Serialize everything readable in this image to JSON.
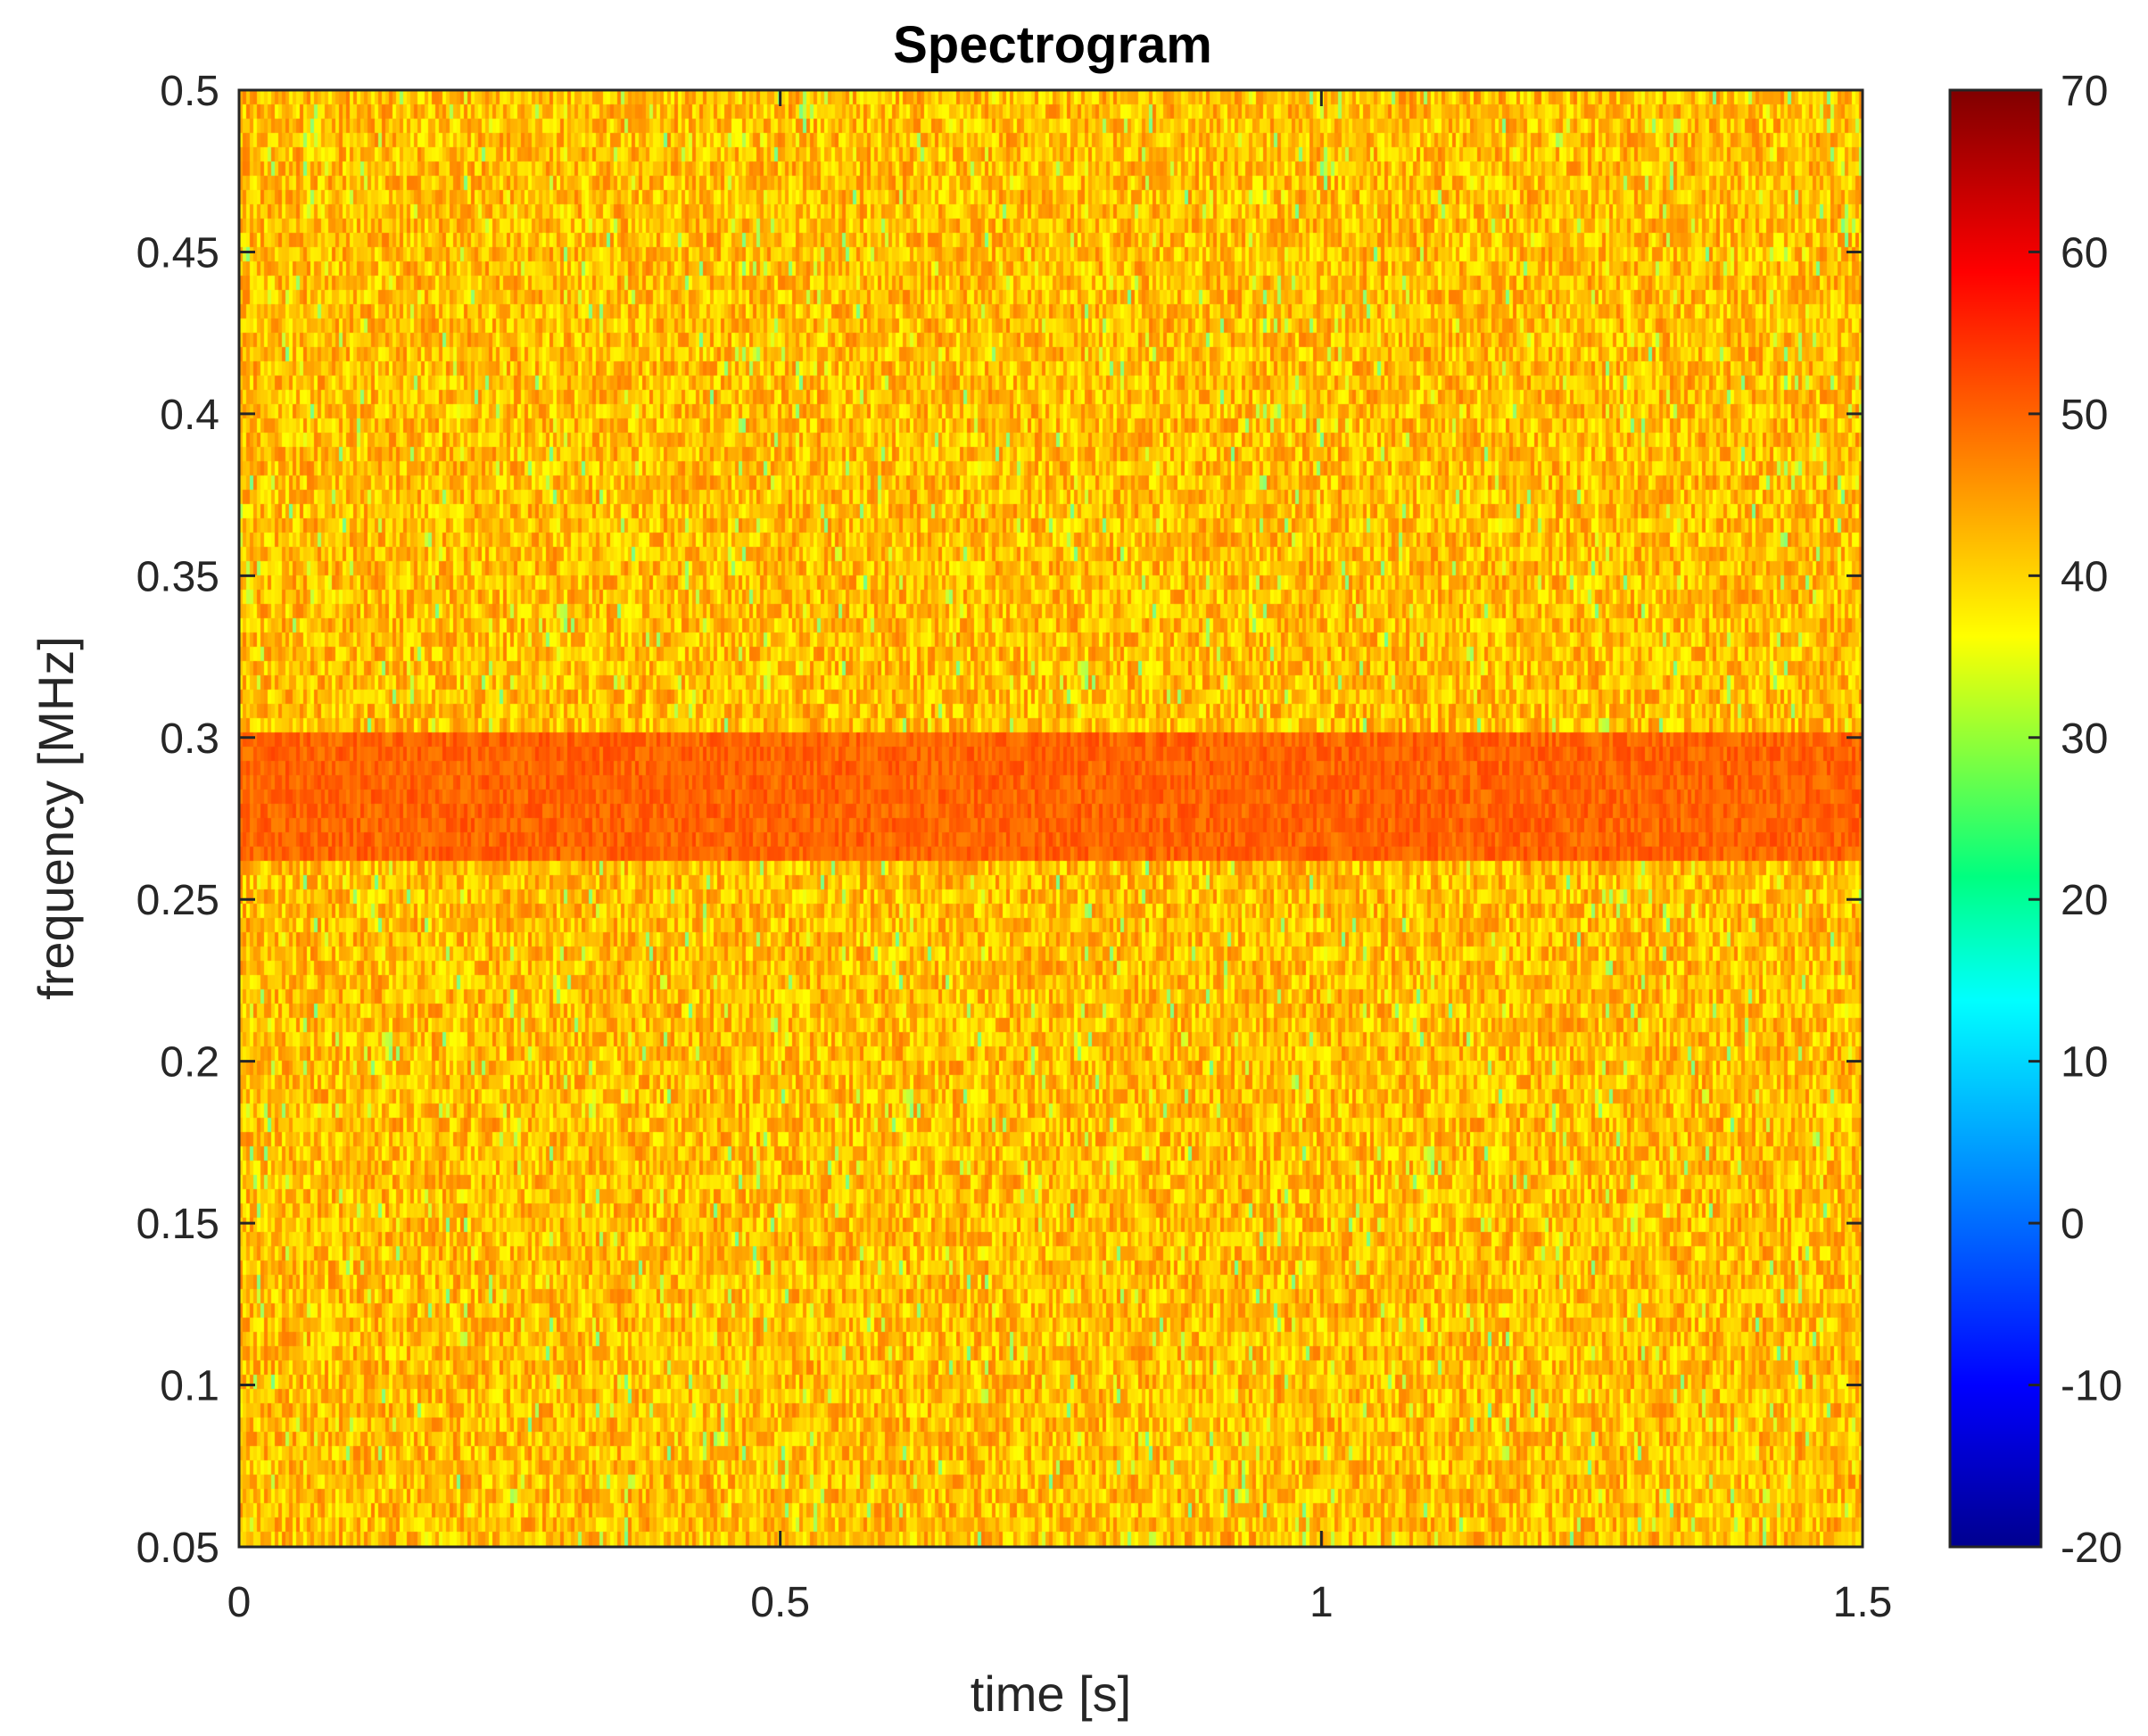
{
  "chart_data": {
    "type": "heatmap",
    "title": "Spectrogram",
    "xlabel": "time [s]",
    "ylabel": "frequency [MHz]",
    "xlim": [
      0,
      1.5
    ],
    "ylim": [
      0.05,
      0.5
    ],
    "x_ticks": [
      "0",
      "0.5",
      "1",
      "1.5"
    ],
    "x_tick_values": [
      0,
      0.5,
      1,
      1.5
    ],
    "y_ticks": [
      "0.05",
      "0.1",
      "0.15",
      "0.2",
      "0.25",
      "0.3",
      "0.35",
      "0.4",
      "0.45",
      "0.5"
    ],
    "y_tick_values": [
      0.05,
      0.1,
      0.15,
      0.2,
      0.25,
      0.3,
      0.35,
      0.4,
      0.45,
      0.5
    ],
    "colorbar": {
      "colormap": "jet",
      "clim": [
        -20,
        70
      ],
      "ticks": [
        "-20",
        "-10",
        "0",
        "10",
        "20",
        "30",
        "40",
        "50",
        "60",
        "70"
      ],
      "tick_values": [
        -20,
        -10,
        0,
        10,
        20,
        30,
        40,
        50,
        60,
        70
      ]
    },
    "background_level_db": 42,
    "features": [
      {
        "freq_range_mhz": [
          0.265,
          0.305
        ],
        "time_range_s": [
          0,
          1.5
        ],
        "level_db": 50
      }
    ],
    "grid": false
  }
}
